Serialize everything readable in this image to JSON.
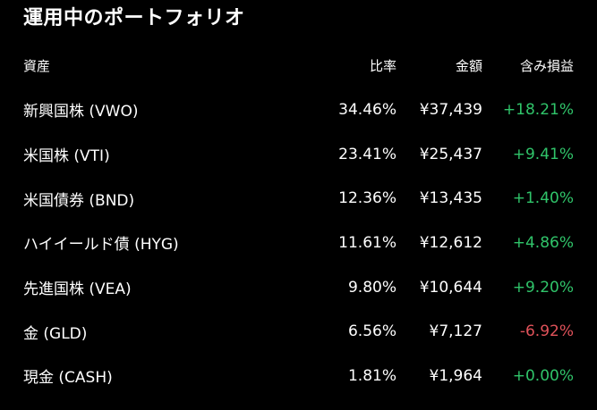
{
  "title": "運用中のポートフォリオ",
  "headers": {
    "asset": "資産",
    "ratio": "比率",
    "amount": "金額",
    "gain": "含み損益"
  },
  "colors": {
    "positive": "#30c46a",
    "negative": "#e0525a",
    "background": "#000000",
    "text": "#ffffff"
  },
  "rows": [
    {
      "name": "新興国株 (VWO)",
      "ratio": "34.46%",
      "amount": "¥37,439",
      "gain": "+18.21%",
      "sign": "pos"
    },
    {
      "name": "米国株 (VTI)",
      "ratio": "23.41%",
      "amount": "¥25,437",
      "gain": "+9.41%",
      "sign": "pos"
    },
    {
      "name": "米国債券 (BND)",
      "ratio": "12.36%",
      "amount": "¥13,435",
      "gain": "+1.40%",
      "sign": "pos"
    },
    {
      "name": "ハイイールド債 (HYG)",
      "ratio": "11.61%",
      "amount": "¥12,612",
      "gain": "+4.86%",
      "sign": "pos"
    },
    {
      "name": "先進国株 (VEA)",
      "ratio": "9.80%",
      "amount": "¥10,644",
      "gain": "+9.20%",
      "sign": "pos"
    },
    {
      "name": "金 (GLD)",
      "ratio": "6.56%",
      "amount": "¥7,127",
      "gain": "-6.92%",
      "sign": "neg"
    },
    {
      "name": "現金 (CASH)",
      "ratio": "1.81%",
      "amount": "¥1,964",
      "gain": "+0.00%",
      "sign": "zero"
    }
  ]
}
